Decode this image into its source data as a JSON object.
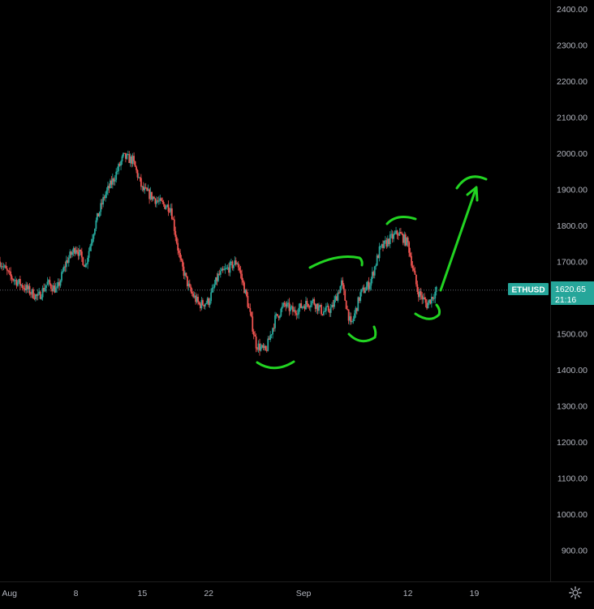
{
  "chart_data": {
    "type": "candlestick",
    "symbol": "ETHUSD",
    "last_price": "1620.65",
    "countdown": "21:16",
    "ylim": [
      800,
      2430
    ],
    "y_ticks": [
      "2400.00",
      "2300.00",
      "2200.00",
      "2100.00",
      "2000.00",
      "1900.00",
      "1800.00",
      "1700.00",
      "1600.00",
      "1500.00",
      "1400.00",
      "1300.00",
      "1200.00",
      "1100.00",
      "1000.00",
      "900.00"
    ],
    "x_ticks": [
      "Aug",
      "8",
      "15",
      "22",
      "Sep",
      "12",
      "19"
    ],
    "x_tick_dates": [
      "2022-08-01",
      "2022-08-08",
      "2022-08-15",
      "2022-08-22",
      "2022-09-01",
      "2022-09-12",
      "2022-09-19"
    ],
    "x_range": [
      "2022-07-31",
      "2022-09-27"
    ],
    "price_path": [
      [
        "2022-07-31",
        1700
      ],
      [
        "2022-08-01",
        1660
      ],
      [
        "2022-08-02",
        1640
      ],
      [
        "2022-08-03",
        1620
      ],
      [
        "2022-08-04",
        1600
      ],
      [
        "2022-08-05",
        1640
      ],
      [
        "2022-08-06",
        1620
      ],
      [
        "2022-08-07",
        1700
      ],
      [
        "2022-08-08",
        1740
      ],
      [
        "2022-08-09",
        1690
      ],
      [
        "2022-08-10",
        1800
      ],
      [
        "2022-08-11",
        1880
      ],
      [
        "2022-08-12",
        1930
      ],
      [
        "2022-08-13",
        1990
      ],
      [
        "2022-08-14",
        1980
      ],
      [
        "2022-08-15",
        1900
      ],
      [
        "2022-08-16",
        1880
      ],
      [
        "2022-08-17",
        1860
      ],
      [
        "2022-08-18",
        1850
      ],
      [
        "2022-08-19",
        1700
      ],
      [
        "2022-08-20",
        1620
      ],
      [
        "2022-08-21",
        1580
      ],
      [
        "2022-08-22",
        1590
      ],
      [
        "2022-08-23",
        1660
      ],
      [
        "2022-08-24",
        1680
      ],
      [
        "2022-08-25",
        1700
      ],
      [
        "2022-08-26",
        1600
      ],
      [
        "2022-08-27",
        1470
      ],
      [
        "2022-08-28",
        1450
      ],
      [
        "2022-08-29",
        1540
      ],
      [
        "2022-08-30",
        1580
      ],
      [
        "2022-08-31",
        1560
      ],
      [
        "2022-09-01",
        1580
      ],
      [
        "2022-09-02",
        1590
      ],
      [
        "2022-09-03",
        1560
      ],
      [
        "2022-09-04",
        1570
      ],
      [
        "2022-09-05",
        1640
      ],
      [
        "2022-09-06",
        1520
      ],
      [
        "2022-09-07",
        1610
      ],
      [
        "2022-09-08",
        1640
      ],
      [
        "2022-09-09",
        1730
      ],
      [
        "2022-09-10",
        1760
      ],
      [
        "2022-09-11",
        1780
      ],
      [
        "2022-09-12",
        1750
      ],
      [
        "2022-09-13",
        1620
      ],
      [
        "2022-09-14",
        1580
      ],
      [
        "2022-09-15",
        1620
      ]
    ],
    "annotations": [
      {
        "type": "curve",
        "shape": "cup",
        "location": "late-Aug low"
      },
      {
        "type": "curve",
        "shape": "cap",
        "location": "early-Sep high"
      },
      {
        "type": "curve",
        "shape": "cup",
        "location": "Sep 7 low"
      },
      {
        "type": "curve",
        "shape": "cap",
        "location": "Sep 11 high"
      },
      {
        "type": "curve",
        "shape": "cup",
        "location": "Sep 14 low"
      },
      {
        "type": "arrow",
        "direction": "up",
        "target_price": 1900
      },
      {
        "type": "curve",
        "shape": "cap",
        "location": "above arrow"
      }
    ]
  },
  "colors": {
    "background": "#000000",
    "up": "#26a69a",
    "down": "#ef5350",
    "grid_text": "#b2b5be",
    "price_label_bg": "#26a69a",
    "annotation": "#22d422",
    "crosshair": "#5d606b"
  },
  "icons": {
    "settings": "gear-icon"
  }
}
